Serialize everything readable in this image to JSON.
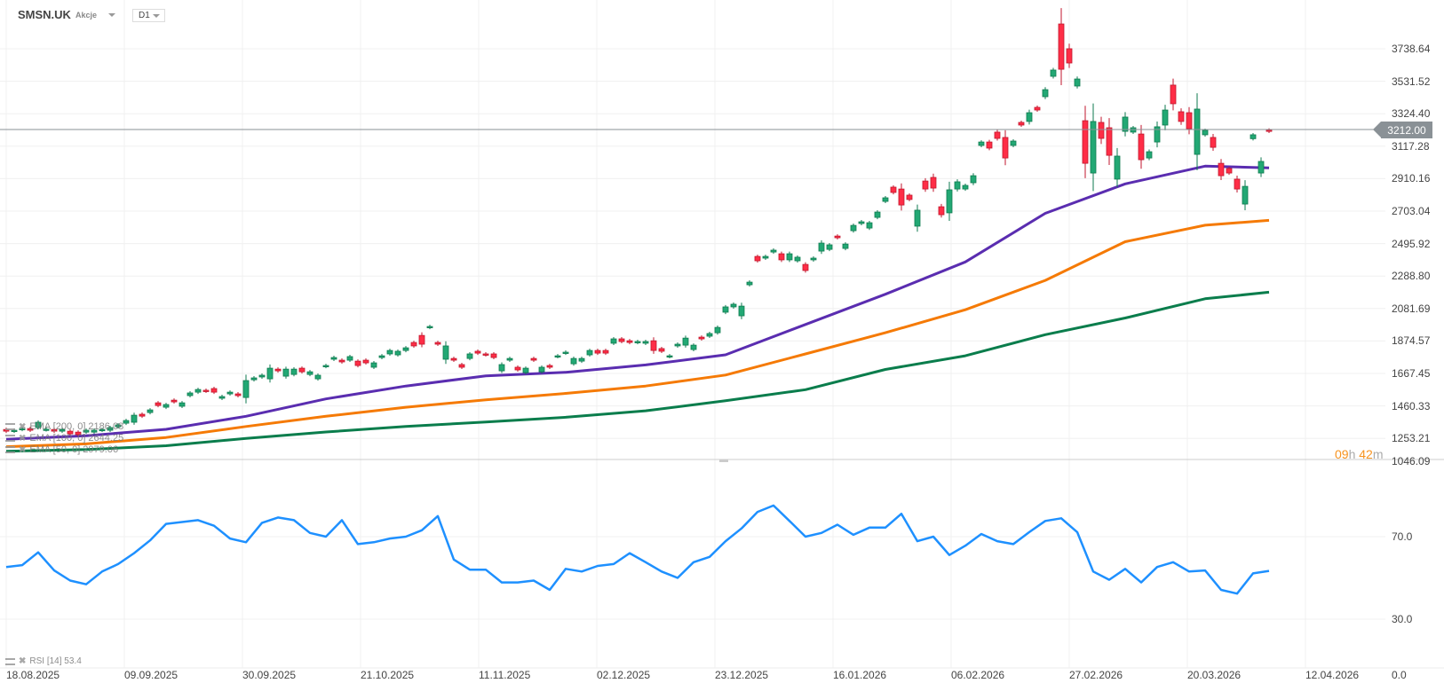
{
  "header": {
    "symbol": "SMSN.UK",
    "type": "Akcje",
    "timeframe": "D1"
  },
  "countdown": {
    "hours": "09",
    "h": "h",
    "minutes": "42",
    "m": "m"
  },
  "legend": {
    "ema200": "EMA [200, 0] 2186.08",
    "ema100": "EMA [100, 0] 2644.25",
    "ema50": "EMA [50, 0] 2979.06",
    "rsi": "RSI [14] 53.4"
  },
  "colors": {
    "up": "#22a874",
    "up_border": "#0e7a4f",
    "down": "#ff2d46",
    "down_border": "#c0162c",
    "ema50": "#5a2db0",
    "ema100": "#f57a05",
    "ema200": "#0a7d4c",
    "rsi": "#1e90ff",
    "last_price_bg": "#8a9196",
    "countdown": "#f7931e"
  },
  "chart_data": {
    "type": "candlestick",
    "price_ticks": [
      "3738.64",
      "3531.52",
      "3324.40",
      "3117.28",
      "2910.16",
      "2703.04",
      "2495.92",
      "2288.80",
      "2081.69",
      "1874.57",
      "1667.45",
      "1460.33",
      "1253.21",
      "1046.09"
    ],
    "last_price": "3212.00",
    "date_ticks": [
      "18.08.2025",
      "09.09.2025",
      "30.09.2025",
      "21.10.2025",
      "11.11.2025",
      "02.12.2025",
      "23.12.2025",
      "16.01.2026",
      "06.02.2026",
      "27.02.2026",
      "20.03.2026",
      "12.04.2026"
    ],
    "candles_open_close": [
      [
        1310,
        1299
      ],
      [
        1299,
        1305
      ],
      [
        1310,
        1316
      ],
      [
        1316,
        1305
      ],
      [
        1322,
        1356
      ],
      [
        1308,
        1312
      ],
      [
        1310,
        1299
      ],
      [
        1299,
        1310
      ],
      [
        1299,
        1282
      ],
      [
        1293,
        1277
      ],
      [
        1293,
        1305
      ],
      [
        1293,
        1305
      ],
      [
        1305,
        1310
      ],
      [
        1305,
        1322
      ],
      [
        1327,
        1339
      ],
      [
        1350,
        1367
      ],
      [
        1356,
        1401
      ],
      [
        1407,
        1395
      ],
      [
        1418,
        1435
      ],
      [
        1480,
        1463
      ],
      [
        1452,
        1469
      ],
      [
        1497,
        1486
      ],
      [
        1458,
        1480
      ],
      [
        1526,
        1543
      ],
      [
        1548,
        1565
      ],
      [
        1560,
        1554
      ],
      [
        1571,
        1548
      ],
      [
        1509,
        1520
      ],
      [
        1537,
        1548
      ],
      [
        1537,
        1526
      ],
      [
        1514,
        1622
      ],
      [
        1627,
        1639
      ],
      [
        1645,
        1656
      ],
      [
        1633,
        1701
      ],
      [
        1695,
        1684
      ],
      [
        1650,
        1695
      ],
      [
        1661,
        1695
      ],
      [
        1701,
        1678
      ],
      [
        1661,
        1678
      ],
      [
        1633,
        1656
      ],
      [
        1712,
        1718
      ],
      [
        1758,
        1769
      ],
      [
        1752,
        1741
      ],
      [
        1752,
        1775
      ],
      [
        1746,
        1718
      ],
      [
        1752,
        1735
      ],
      [
        1707,
        1735
      ],
      [
        1769,
        1780
      ],
      [
        1792,
        1814
      ],
      [
        1786,
        1809
      ],
      [
        1814,
        1831
      ],
      [
        1865,
        1843
      ],
      [
        1910,
        1854
      ],
      [
        1961,
        1967
      ],
      [
        1865,
        1854
      ],
      [
        1758,
        1843
      ],
      [
        1763,
        1752
      ],
      [
        1724,
        1707
      ],
      [
        1763,
        1792
      ],
      [
        1809,
        1797
      ],
      [
        1792,
        1786
      ],
      [
        1792,
        1769
      ],
      [
        1684,
        1724
      ],
      [
        1752,
        1763
      ],
      [
        1707,
        1690
      ],
      [
        1673,
        1701
      ],
      [
        1763,
        1752
      ],
      [
        1678,
        1707
      ],
      [
        1718,
        1707
      ],
      [
        1775,
        1780
      ],
      [
        1797,
        1803
      ],
      [
        1729,
        1763
      ],
      [
        1746,
        1763
      ],
      [
        1786,
        1814
      ],
      [
        1814,
        1797
      ],
      [
        1814,
        1797
      ],
      [
        1860,
        1888
      ],
      [
        1888,
        1871
      ],
      [
        1876,
        1865
      ],
      [
        1865,
        1871
      ],
      [
        1860,
        1871
      ],
      [
        1876,
        1814
      ],
      [
        1826,
        1809
      ],
      [
        1775,
        1780
      ],
      [
        1843,
        1854
      ],
      [
        1848,
        1893
      ],
      [
        1820,
        1848
      ],
      [
        1899,
        1888
      ],
      [
        1905,
        1922
      ],
      [
        1927,
        1961
      ],
      [
        2058,
        2092
      ],
      [
        2092,
        2109
      ],
      [
        2035,
        2097
      ],
      [
        2233,
        2250
      ],
      [
        2414,
        2386
      ],
      [
        2403,
        2414
      ],
      [
        2442,
        2454
      ],
      [
        2431,
        2392
      ],
      [
        2392,
        2431
      ],
      [
        2386,
        2409
      ],
      [
        2363,
        2324
      ],
      [
        2392,
        2403
      ],
      [
        2448,
        2499
      ],
      [
        2459,
        2488
      ],
      [
        2544,
        2533
      ],
      [
        2465,
        2493
      ],
      [
        2578,
        2612
      ],
      [
        2624,
        2635
      ],
      [
        2595,
        2629
      ],
      [
        2663,
        2697
      ],
      [
        2765,
        2788
      ],
      [
        2856,
        2822
      ],
      [
        2844,
        2742
      ],
      [
        2805,
        2777
      ],
      [
        2607,
        2709
      ],
      [
        2895,
        2844
      ],
      [
        2918,
        2850
      ],
      [
        2731,
        2680
      ],
      [
        2692,
        2839
      ],
      [
        2844,
        2890
      ],
      [
        2844,
        2867
      ],
      [
        2884,
        2929
      ],
      [
        3122,
        3144
      ],
      [
        3144,
        3105
      ],
      [
        3207,
        3167
      ],
      [
        3173,
        3042
      ],
      [
        3122,
        3150
      ],
      [
        3269,
        3252
      ],
      [
        3275,
        3331
      ],
      [
        3365,
        3348
      ],
      [
        3433,
        3478
      ],
      [
        3563,
        3603
      ],
      [
        3897,
        3608
      ],
      [
        3739,
        3648
      ],
      [
        3501,
        3546
      ],
      [
        3280,
        3008
      ],
      [
        2946,
        3275
      ],
      [
        3269,
        3167
      ],
      [
        3235,
        3059
      ],
      [
        2907,
        3054
      ],
      [
        3212,
        3303
      ],
      [
        3207,
        3235
      ],
      [
        3195,
        3031
      ],
      [
        3042,
        3082
      ],
      [
        3144,
        3241
      ],
      [
        3252,
        3348
      ],
      [
        3507,
        3388
      ],
      [
        3337,
        3275
      ],
      [
        3331,
        3229
      ],
      [
        3065,
        3354
      ],
      [
        3190,
        3218
      ],
      [
        3173,
        3110
      ],
      [
        3008,
        2929
      ],
      [
        2975,
        2946
      ],
      [
        2907,
        2844
      ],
      [
        2748,
        2861
      ],
      [
        3165,
        3190
      ],
      [
        2946,
        3020
      ],
      [
        3220,
        3212
      ]
    ],
    "ema_sample_every_n_candles": 10,
    "ema50": [
      1247,
      1270,
      1311,
      1394,
      1505,
      1587,
      1652,
      1675,
      1722,
      1786,
      1980,
      2173,
      2379,
      2689,
      2877,
      2990,
      2979
    ],
    "ema100": [
      1200,
      1218,
      1259,
      1329,
      1394,
      1452,
      1499,
      1540,
      1587,
      1657,
      1792,
      1927,
      2074,
      2261,
      2508,
      2613,
      2644
    ],
    "ema200": [
      1171,
      1182,
      1206,
      1253,
      1294,
      1329,
      1358,
      1388,
      1429,
      1493,
      1564,
      1693,
      1780,
      1915,
      2021,
      2144,
      2186
    ],
    "rsi_ticks": [
      "70.0",
      "30.0",
      "0.0"
    ],
    "rsi": [
      55.3,
      56.2,
      62.4,
      53.6,
      48.7,
      46.9,
      53.1,
      56.7,
      62,
      68.2,
      76.2,
      77.1,
      78,
      75.3,
      69.1,
      67.3,
      76.7,
      79.3,
      78,
      71.8,
      70,
      78,
      66.4,
      67.3,
      69.1,
      70,
      73.1,
      80,
      58.9,
      54,
      54,
      47.8,
      47.8,
      48.7,
      44.2,
      54.4,
      53.1,
      55.8,
      56.7,
      62,
      57.6,
      53.1,
      50,
      57.6,
      60.2,
      67.8,
      74,
      82,
      85.1,
      77.6,
      70,
      71.8,
      75.8,
      70.9,
      74.4,
      74.4,
      81.1,
      67.8,
      70,
      61.1,
      65.6,
      71.3,
      67.8,
      66.4,
      72.2,
      77.6,
      78.9,
      72.2,
      53.1,
      49.1,
      54.4,
      47.8,
      55.3,
      57.6,
      53.1,
      53.6,
      44.2,
      42.4,
      52.2,
      53.4
    ]
  }
}
